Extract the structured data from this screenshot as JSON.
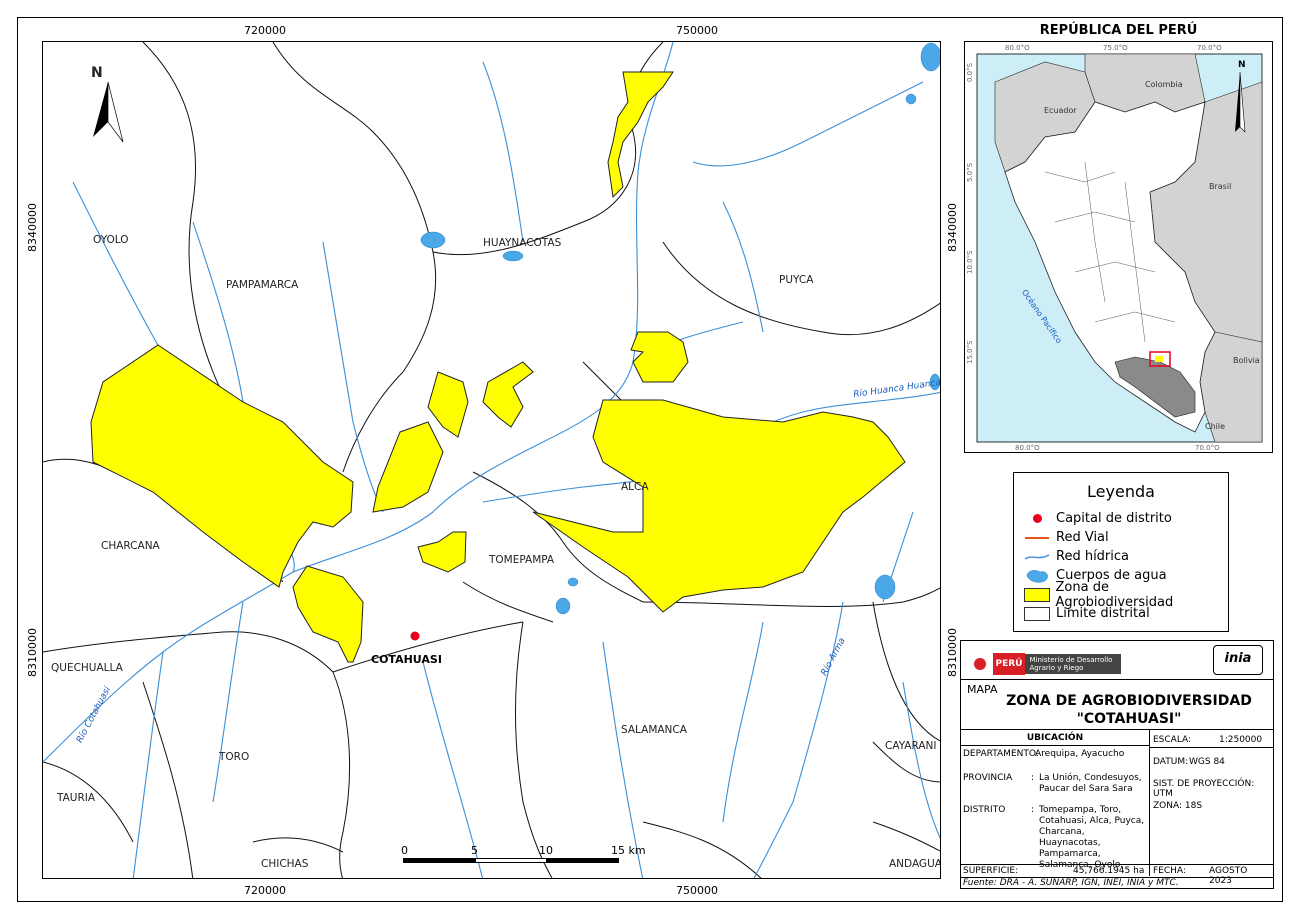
{
  "map": {
    "x_ticks": [
      "720000",
      "750000"
    ],
    "y_ticks": [
      "8340000",
      "8310000"
    ],
    "places": {
      "oyolo": "OYOLO",
      "pampamarca": "PAMPAMARCA",
      "huaynacotas": "HUAYNACOTAS",
      "puyca": "PUYCA",
      "charcana": "CHARCANA",
      "alca": "ALCA",
      "tomepampa": "TOMEPAMPA",
      "quechualla": "QUECHUALLA",
      "cotahuasi": "COTAHUASI",
      "toro": "TORO",
      "salamanca": "SALAMANCA",
      "cayarani": "CAYARANI",
      "tauria": "TAURIA",
      "chichas": "CHICHAS",
      "andagua": "ANDAGUA"
    },
    "rivers": {
      "cotahuasi": "Río Cotahuasi",
      "huanca": "Río Huanca Huanca",
      "arma": "Río Arma"
    },
    "north": "N",
    "scale": {
      "labels": [
        "0",
        "5",
        "10",
        "15 km"
      ]
    }
  },
  "inset": {
    "title": "REPÚBLICA DEL PERÚ",
    "lon_ticks": [
      "80.0°O",
      "75.0°O",
      "70.0°O"
    ],
    "lat_ticks": [
      "0.0°S",
      "5.0°S",
      "10.0°S",
      "15.0°S"
    ],
    "countries": {
      "ecuador": "Ecuador",
      "colombia": "Colombia",
      "brasil": "Brasil",
      "bolivia": "Bolivia",
      "chile": "Chile"
    },
    "ocean": "Océano Pacífico",
    "north": "N"
  },
  "legend": {
    "title": "Leyenda",
    "items": [
      {
        "label": "Capital de distrito",
        "symbol": "red-dot",
        "color": "#e8001c"
      },
      {
        "label": "Red Vial",
        "symbol": "line",
        "color": "#e8551c"
      },
      {
        "label": "Red hídrica",
        "symbol": "stream",
        "color": "#3b8fd6"
      },
      {
        "label": "Cuerpos de agua",
        "symbol": "water",
        "color": "#4aa8e8"
      },
      {
        "label": "Zona de Agrobiodiversidad",
        "symbol": "box",
        "color": "#ffff00"
      },
      {
        "label": "Limite distrital",
        "symbol": "box",
        "color": "#ffffff"
      }
    ]
  },
  "info": {
    "peru_logo": "PERÚ",
    "ministry": "Ministerio de Desarrollo Agrario y Riego",
    "inia_logo": "inia",
    "map_word": "MAPA",
    "title_line1": "ZONA DE AGROBIODIVERSIDAD",
    "title_line2": "\"COTAHUASI\"",
    "ubicacion": "UBICACIÓN",
    "departamento_label": "DEPARTAMENTO:",
    "departamento_value": "Arequipa, Ayacucho",
    "provincia_label": "PROVINCIA",
    "provincia_value": "La Unión, Condesuyos, Paucar del Sara Sara",
    "distrito_label": "DISTRITO",
    "distrito_value": "Tomepampa, Toro, Cotahuasi, Alca, Puyca, Charcana, Huaynacotas, Pampamarca, Salamanca, Oyolo.",
    "colon": ":",
    "escala_label": "ESCALA:",
    "escala_value": "1:250000",
    "datum_label": "DATUM:",
    "datum_value": "WGS 84",
    "proyeccion": "SIST. DE PROYECCIÓN: UTM",
    "zona": "ZONA: 18S",
    "superficie_label": "SUPERFICIE:",
    "superficie_value": "45,766.1945 ha",
    "fecha_label": "FECHA:",
    "fecha_value": "AGOSTO 2023",
    "fuente": "Fuente: DRA - A. SUNARP, IGN, INEI, INIA y MTC."
  },
  "colors": {
    "zone": "#ffff00",
    "water": "#4aa8e8",
    "stream": "#3b8fd6",
    "capital": "#e8001c",
    "peru_red": "#d91f26",
    "land_grey": "#d3d3d3",
    "sea": "#cdeef7",
    "region_dark": "#8a8a8a"
  }
}
